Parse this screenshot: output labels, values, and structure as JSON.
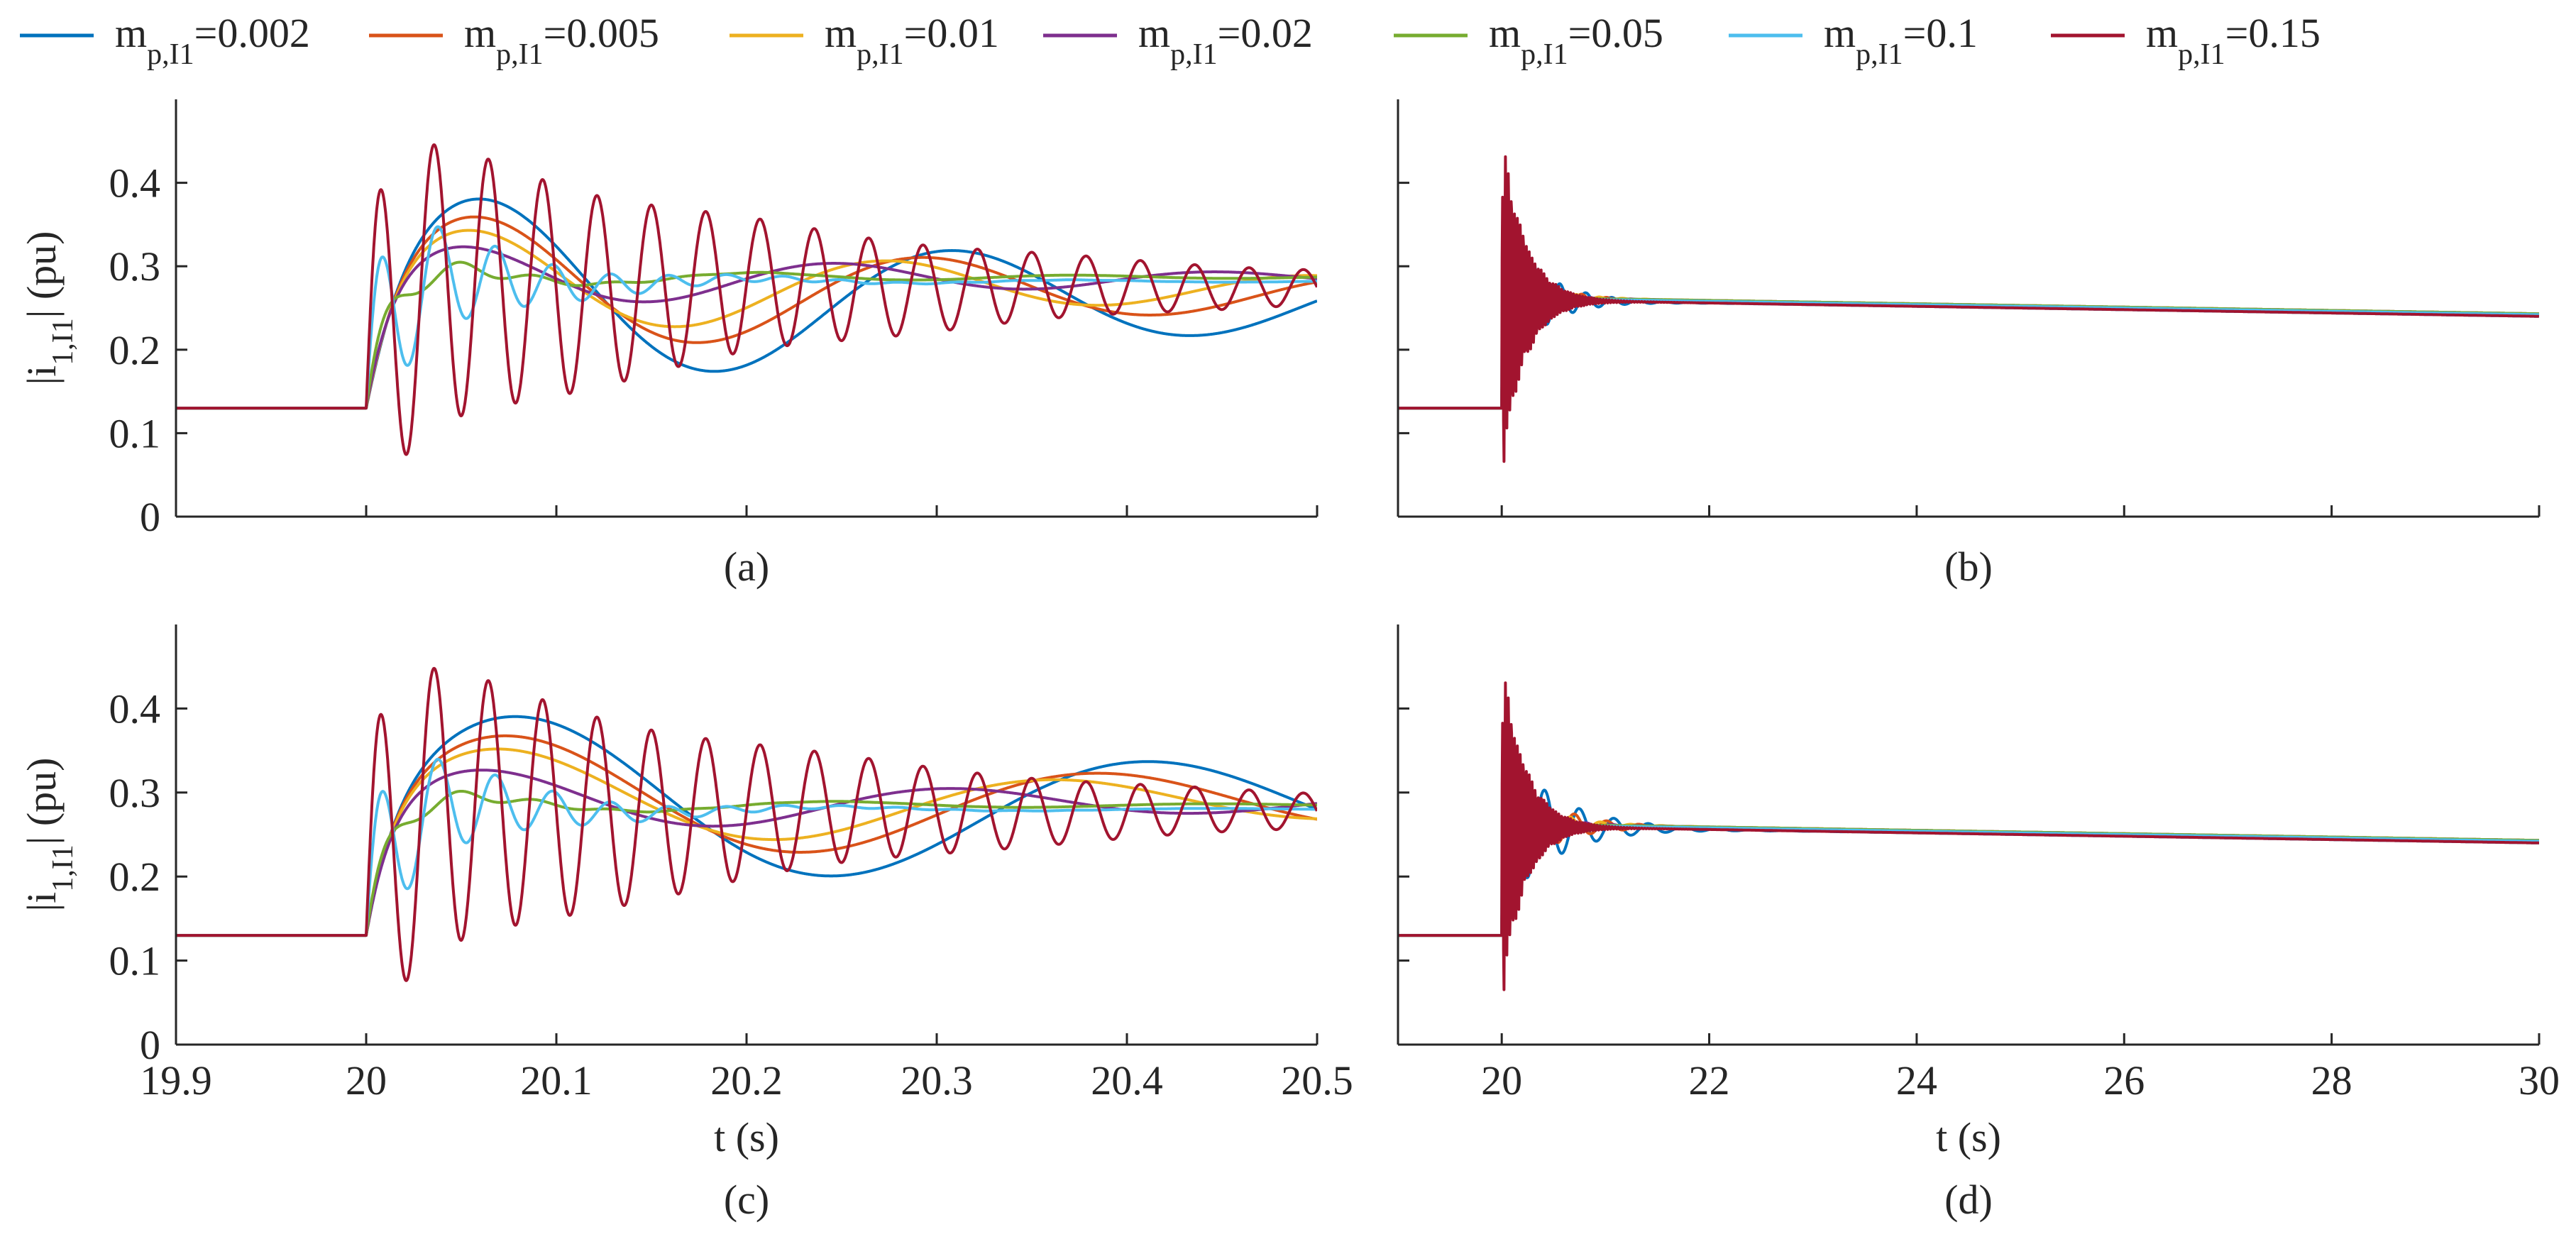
{
  "chart_data": {
    "type": "line",
    "ylabel": "|i",
    "ylabel_sub": "1,I1",
    "ylabel_suffix": "| (pu)",
    "xlabel": "t (s)",
    "legend": {
      "placement": "top",
      "prefix": "m",
      "subscript": "p,I1",
      "entries": [
        {
          "value": "=0.002",
          "color": "#0072BD"
        },
        {
          "value": "=0.005",
          "color": "#D95319"
        },
        {
          "value": "=0.01",
          "color": "#EDB120"
        },
        {
          "value": "=0.02",
          "color": "#7E2F8E"
        },
        {
          "value": "=0.05",
          "color": "#77AC30"
        },
        {
          "value": "=0.1",
          "color": "#4DBEEE"
        },
        {
          "value": "=0.15",
          "color": "#A2142F"
        }
      ]
    },
    "panels": [
      {
        "id": "a",
        "caption": "(a)",
        "xlim": [
          19.9,
          20.5
        ],
        "ylim": [
          0,
          0.5
        ],
        "xticks": [
          19.9,
          20,
          20.1,
          20.2,
          20.3,
          20.4,
          20.5
        ],
        "xticklabels": [],
        "yticks": [
          0,
          0.1,
          0.2,
          0.3,
          0.4
        ],
        "yticklabels": [
          "0",
          "0.1",
          "0.2",
          "0.3",
          "0.4"
        ],
        "show_xlabel": false,
        "show_ylabel": true,
        "initial_value": 0.13,
        "step_time": 20,
        "series": [
          {
            "name": "0.002",
            "final": 0.26,
            "a1": 0.145,
            "f1": 4.0,
            "tau1": 0.35,
            "a2": 0,
            "f2": 0,
            "tau2": 1,
            "drift": -0.03
          },
          {
            "name": "0.005",
            "final": 0.27,
            "a1": 0.11,
            "f1": 4.2,
            "tau1": 0.3,
            "a2": 0,
            "f2": 0,
            "tau2": 1,
            "drift": -0.02
          },
          {
            "name": "0.01",
            "final": 0.275,
            "a1": 0.085,
            "f1": 4.5,
            "tau1": 0.28,
            "a2": 0,
            "f2": 0,
            "tau2": 1,
            "drift": -0.01
          },
          {
            "name": "0.02",
            "final": 0.285,
            "a1": 0.05,
            "f1": 5.0,
            "tau1": 0.25,
            "a2": 0,
            "f2": 0,
            "tau2": 1,
            "drift": 0
          },
          {
            "name": "0.05",
            "final": 0.287,
            "a1": 0.015,
            "f1": 6.0,
            "tau1": 0.2,
            "a2": 0.025,
            "f2": 25,
            "tau2": 0.05,
            "drift": 0
          },
          {
            "name": "0.1",
            "final": 0.282,
            "a1": 0.01,
            "f1": 6.0,
            "tau1": 0.2,
            "a2": 0.12,
            "f2": 33,
            "tau2": 0.06,
            "drift": 0
          },
          {
            "name": "0.15",
            "final": 0.275,
            "a1": 0.01,
            "f1": 6.0,
            "tau1": 0.2,
            "a2": 0.2,
            "f2": 35,
            "tau2": 0.22,
            "drift": 0
          }
        ]
      },
      {
        "id": "b",
        "caption": "(b)",
        "xlim": [
          19,
          30
        ],
        "ylim": [
          0,
          0.5
        ],
        "xticks": [
          20,
          22,
          24,
          26,
          28,
          30
        ],
        "xticklabels": [],
        "yticks": [
          0,
          0.1,
          0.2,
          0.3,
          0.4
        ],
        "yticklabels": [],
        "show_xlabel": false,
        "show_ylabel": false,
        "initial_value": 0.13,
        "step_time": 20,
        "series": [
          {
            "name": "0.002",
            "final": 0.26,
            "a1": 0.1,
            "f1": 4.0,
            "tau1": 0.35,
            "a2": 0,
            "f2": 0,
            "tau2": 1,
            "drift": -0.02
          },
          {
            "name": "0.005",
            "final": 0.262,
            "a1": 0.08,
            "f1": 4.2,
            "tau1": 0.3,
            "a2": 0,
            "f2": 0,
            "tau2": 1,
            "drift": -0.02
          },
          {
            "name": "0.01",
            "final": 0.263,
            "a1": 0.06,
            "f1": 4.5,
            "tau1": 0.28,
            "a2": 0,
            "f2": 0,
            "tau2": 1,
            "drift": -0.02
          },
          {
            "name": "0.02",
            "final": 0.263,
            "a1": 0.04,
            "f1": 5.0,
            "tau1": 0.25,
            "a2": 0,
            "f2": 0,
            "tau2": 1,
            "drift": -0.02
          },
          {
            "name": "0.05",
            "final": 0.263,
            "a1": 0.01,
            "f1": 6.0,
            "tau1": 0.2,
            "a2": 0.02,
            "f2": 25,
            "tau2": 0.05,
            "drift": -0.02
          },
          {
            "name": "0.1",
            "final": 0.262,
            "a1": 0.01,
            "f1": 6.0,
            "tau1": 0.2,
            "a2": 0.12,
            "f2": 33,
            "tau2": 0.06,
            "drift": -0.02
          },
          {
            "name": "0.15",
            "final": 0.26,
            "a1": 0.01,
            "f1": 6.0,
            "tau1": 0.2,
            "a2": 0.2,
            "f2": 35,
            "tau2": 0.22,
            "drift": -0.02
          }
        ]
      },
      {
        "id": "c",
        "caption": "(c)",
        "xlim": [
          19.9,
          20.5
        ],
        "ylim": [
          0,
          0.5
        ],
        "xticks": [
          19.9,
          20,
          20.1,
          20.2,
          20.3,
          20.4,
          20.5
        ],
        "xticklabels": [
          "19.9",
          "20",
          "20.1",
          "20.2",
          "20.3",
          "20.4",
          "20.5"
        ],
        "yticks": [
          0,
          0.1,
          0.2,
          0.3,
          0.4
        ],
        "yticklabels": [
          "0",
          "0.1",
          "0.2",
          "0.3",
          "0.4"
        ],
        "show_xlabel": true,
        "show_ylabel": true,
        "initial_value": 0.13,
        "step_time": 20,
        "series": [
          {
            "name": "0.002",
            "final": 0.28,
            "a1": 0.13,
            "f1": 3.0,
            "tau1": 0.5,
            "a2": 0,
            "f2": 0,
            "tau2": 1,
            "drift": 0
          },
          {
            "name": "0.005",
            "final": 0.285,
            "a1": 0.1,
            "f1": 3.2,
            "tau1": 0.4,
            "a2": 0,
            "f2": 0,
            "tau2": 1,
            "drift": 0
          },
          {
            "name": "0.01",
            "final": 0.287,
            "a1": 0.08,
            "f1": 3.4,
            "tau1": 0.35,
            "a2": 0,
            "f2": 0,
            "tau2": 1,
            "drift": 0
          },
          {
            "name": "0.02",
            "final": 0.287,
            "a1": 0.05,
            "f1": 4.0,
            "tau1": 0.3,
            "a2": 0,
            "f2": 0,
            "tau2": 1,
            "drift": 0
          },
          {
            "name": "0.05",
            "final": 0.285,
            "a1": 0.015,
            "f1": 5.0,
            "tau1": 0.2,
            "a2": 0.02,
            "f2": 25,
            "tau2": 0.05,
            "drift": 0
          },
          {
            "name": "0.1",
            "final": 0.28,
            "a1": 0.01,
            "f1": 5.0,
            "tau1": 0.2,
            "a2": 0.11,
            "f2": 33,
            "tau2": 0.06,
            "drift": 0
          },
          {
            "name": "0.15",
            "final": 0.278,
            "a1": 0.01,
            "f1": 5.0,
            "tau1": 0.2,
            "a2": 0.2,
            "f2": 35,
            "tau2": 0.22,
            "drift": 0
          }
        ]
      },
      {
        "id": "d",
        "caption": "(d)",
        "xlim": [
          19,
          30
        ],
        "ylim": [
          0,
          0.5
        ],
        "xticks": [
          20,
          22,
          24,
          26,
          28,
          30
        ],
        "xticklabels": [
          "20",
          "22",
          "24",
          "26",
          "28",
          "30"
        ],
        "yticks": [
          0,
          0.1,
          0.2,
          0.3,
          0.4
        ],
        "yticklabels": [],
        "show_xlabel": true,
        "show_ylabel": false,
        "initial_value": 0.13,
        "step_time": 20,
        "series": [
          {
            "name": "0.002",
            "final": 0.26,
            "a1": 0.1,
            "f1": 3.0,
            "tau1": 0.5,
            "a2": 0,
            "f2": 0,
            "tau2": 1,
            "drift": -0.02
          },
          {
            "name": "0.005",
            "final": 0.262,
            "a1": 0.08,
            "f1": 3.2,
            "tau1": 0.4,
            "a2": 0,
            "f2": 0,
            "tau2": 1,
            "drift": -0.02
          },
          {
            "name": "0.01",
            "final": 0.263,
            "a1": 0.06,
            "f1": 3.4,
            "tau1": 0.35,
            "a2": 0,
            "f2": 0,
            "tau2": 1,
            "drift": -0.02
          },
          {
            "name": "0.02",
            "final": 0.263,
            "a1": 0.04,
            "f1": 4.0,
            "tau1": 0.3,
            "a2": 0,
            "f2": 0,
            "tau2": 1,
            "drift": -0.02
          },
          {
            "name": "0.05",
            "final": 0.263,
            "a1": 0.01,
            "f1": 5.0,
            "tau1": 0.2,
            "a2": 0.02,
            "f2": 25,
            "tau2": 0.05,
            "drift": -0.02
          },
          {
            "name": "0.1",
            "final": 0.262,
            "a1": 0.01,
            "f1": 5.0,
            "tau1": 0.2,
            "a2": 0.11,
            "f2": 33,
            "tau2": 0.06,
            "drift": -0.02
          },
          {
            "name": "0.15",
            "final": 0.26,
            "a1": 0.01,
            "f1": 5.0,
            "tau1": 0.2,
            "a2": 0.2,
            "f2": 35,
            "tau2": 0.22,
            "drift": -0.02
          }
        ]
      }
    ]
  }
}
